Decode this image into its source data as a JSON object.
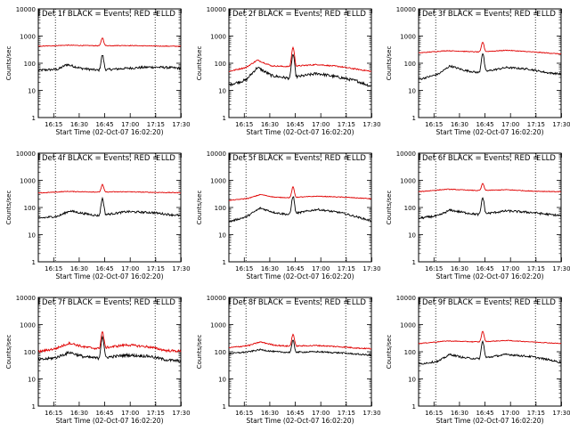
{
  "chart_data": [
    {
      "type": "line",
      "title": "Det 1f BLACK = Events, RED = LLD",
      "xlabel": "Start Time (02-Oct-07 16:02:20)",
      "ylabel": "Counts/sec",
      "ylog": true,
      "ylim": [
        1,
        10000
      ],
      "xtick_labels": [
        "16:15",
        "16:30",
        "16:45",
        "17:00",
        "17:15",
        "17:30"
      ],
      "ytick_labels": [
        "1",
        "10",
        "100",
        "1000",
        "10000"
      ],
      "marker_label": "E",
      "series": [
        {
          "color": "#000000",
          "base": [
            [
              0,
              55
            ],
            [
              0.14,
              60
            ],
            [
              0.2,
              90
            ],
            [
              0.3,
              65
            ],
            [
              0.42,
              55
            ],
            [
              0.62,
              65
            ],
            [
              0.78,
              72
            ],
            [
              0.9,
              70
            ],
            [
              1,
              65
            ]
          ],
          "peak": 140,
          "noise": 0.1
        },
        {
          "color": "#e00000",
          "base": [
            [
              0,
              420
            ],
            [
              0.2,
              460
            ],
            [
              0.42,
              440
            ],
            [
              0.62,
              450
            ],
            [
              0.8,
              430
            ],
            [
              1,
              420
            ]
          ],
          "peak": 420,
          "noise": 0.03
        }
      ]
    },
    {
      "type": "line",
      "title": "Det 2f BLACK = Events, RED = LLD",
      "xlabel": "Start Time (02-Oct-07 16:02:20)",
      "ylabel": "Counts/sec",
      "ylog": true,
      "ylim": [
        1,
        10000
      ],
      "xtick_labels": [
        "16:15",
        "16:30",
        "16:45",
        "17:00",
        "17:15",
        "17:30"
      ],
      "ytick_labels": [
        "1",
        "10",
        "100",
        "1000",
        "10000"
      ],
      "marker_label": "E",
      "series": [
        {
          "color": "#000000",
          "base": [
            [
              0,
              16
            ],
            [
              0.12,
              24
            ],
            [
              0.2,
              70
            ],
            [
              0.3,
              35
            ],
            [
              0.42,
              28
            ],
            [
              0.62,
              42
            ],
            [
              0.78,
              30
            ],
            [
              0.9,
              22
            ],
            [
              1,
              14
            ]
          ],
          "peak": 180,
          "noise": 0.12
        },
        {
          "color": "#e00000",
          "base": [
            [
              0,
              50
            ],
            [
              0.12,
              70
            ],
            [
              0.2,
              130
            ],
            [
              0.3,
              80
            ],
            [
              0.42,
              75
            ],
            [
              0.62,
              90
            ],
            [
              0.78,
              75
            ],
            [
              0.9,
              60
            ],
            [
              1,
              50
            ]
          ],
          "peak": 300,
          "noise": 0.05
        }
      ]
    },
    {
      "type": "line",
      "title": "Det 3f BLACK = Events, RED = LLD",
      "xlabel": "Start Time (02-Oct-07 16:02:20)",
      "ylabel": "Counts/sec",
      "ylog": true,
      "ylim": [
        1,
        10000
      ],
      "xtick_labels": [
        "16:15",
        "16:30",
        "16:45",
        "17:00",
        "17:15",
        "17:30"
      ],
      "ytick_labels": [
        "1",
        "10",
        "100",
        "1000",
        "10000"
      ],
      "marker_label": "E",
      "series": [
        {
          "color": "#000000",
          "base": [
            [
              0,
              25
            ],
            [
              0.14,
              40
            ],
            [
              0.22,
              80
            ],
            [
              0.32,
              55
            ],
            [
              0.42,
              45
            ],
            [
              0.62,
              70
            ],
            [
              0.78,
              60
            ],
            [
              0.9,
              45
            ],
            [
              1,
              40
            ]
          ],
          "peak": 180,
          "noise": 0.08
        },
        {
          "color": "#e00000",
          "base": [
            [
              0,
              240
            ],
            [
              0.2,
              290
            ],
            [
              0.42,
              260
            ],
            [
              0.62,
              300
            ],
            [
              0.8,
              260
            ],
            [
              1,
              220
            ]
          ],
          "peak": 330,
          "noise": 0.03
        }
      ]
    },
    {
      "type": "line",
      "title": "Det 4f BLACK = Events, RED = LLD",
      "xlabel": "Start Time (02-Oct-07 16:02:20)",
      "ylabel": "Counts/sec",
      "ylog": true,
      "ylim": [
        1,
        10000
      ],
      "xtick_labels": [
        "16:15",
        "16:30",
        "16:45",
        "17:00",
        "17:15",
        "17:30"
      ],
      "ytick_labels": [
        "1",
        "10",
        "100",
        "1000",
        "10000"
      ],
      "marker_label": "E",
      "series": [
        {
          "color": "#000000",
          "base": [
            [
              0,
              40
            ],
            [
              0.14,
              48
            ],
            [
              0.22,
              75
            ],
            [
              0.32,
              60
            ],
            [
              0.42,
              50
            ],
            [
              0.62,
              70
            ],
            [
              0.8,
              65
            ],
            [
              0.92,
              55
            ],
            [
              1,
              50
            ]
          ],
          "peak": 160,
          "noise": 0.09
        },
        {
          "color": "#e00000",
          "base": [
            [
              0,
              340
            ],
            [
              0.2,
              390
            ],
            [
              0.42,
              370
            ],
            [
              0.62,
              380
            ],
            [
              0.8,
              360
            ],
            [
              1,
              350
            ]
          ],
          "peak": 320,
          "noise": 0.03
        }
      ]
    },
    {
      "type": "line",
      "title": "Det 5f BLACK = Events, RED = LLD",
      "xlabel": "Start Time (02-Oct-07 16:02:20)",
      "ylabel": "Counts/sec",
      "ylog": true,
      "ylim": [
        1,
        10000
      ],
      "xtick_labels": [
        "16:15",
        "16:30",
        "16:45",
        "17:00",
        "17:15",
        "17:30"
      ],
      "ytick_labels": [
        "1",
        "10",
        "100",
        "1000",
        "10000"
      ],
      "marker_label": "E",
      "series": [
        {
          "color": "#000000",
          "base": [
            [
              0,
              30
            ],
            [
              0.12,
              45
            ],
            [
              0.22,
              95
            ],
            [
              0.32,
              65
            ],
            [
              0.42,
              55
            ],
            [
              0.62,
              85
            ],
            [
              0.78,
              65
            ],
            [
              0.9,
              45
            ],
            [
              1,
              32
            ]
          ],
          "peak": 200,
          "noise": 0.08
        },
        {
          "color": "#e00000",
          "base": [
            [
              0,
              180
            ],
            [
              0.14,
              220
            ],
            [
              0.22,
              300
            ],
            [
              0.32,
              240
            ],
            [
              0.42,
              230
            ],
            [
              0.62,
              260
            ],
            [
              0.8,
              240
            ],
            [
              1,
              210
            ]
          ],
          "peak": 330,
          "noise": 0.03
        }
      ]
    },
    {
      "type": "line",
      "title": "Det 6f BLACK = Events, RED = LLD",
      "xlabel": "Start Time (02-Oct-07 16:02:20)",
      "ylabel": "Counts/sec",
      "ylog": true,
      "ylim": [
        1,
        10000
      ],
      "xtick_labels": [
        "16:15",
        "16:30",
        "16:45",
        "17:00",
        "17:15",
        "17:30"
      ],
      "ytick_labels": [
        "1",
        "10",
        "100",
        "1000",
        "10000"
      ],
      "marker_label": "E",
      "series": [
        {
          "color": "#000000",
          "base": [
            [
              0,
              40
            ],
            [
              0.14,
              50
            ],
            [
              0.22,
              80
            ],
            [
              0.32,
              65
            ],
            [
              0.42,
              55
            ],
            [
              0.62,
              75
            ],
            [
              0.8,
              65
            ],
            [
              0.92,
              55
            ],
            [
              1,
              50
            ]
          ],
          "peak": 170,
          "noise": 0.09
        },
        {
          "color": "#e00000",
          "base": [
            [
              0,
              380
            ],
            [
              0.2,
              470
            ],
            [
              0.42,
              420
            ],
            [
              0.62,
              450
            ],
            [
              0.8,
              400
            ],
            [
              1,
              380
            ]
          ],
          "peak": 340,
          "noise": 0.03
        }
      ]
    },
    {
      "type": "line",
      "title": "Det 7f BLACK = Events, RED = LLD",
      "xlabel": "Start Time (02-Oct-07 16:02:20)",
      "ylabel": "Counts/sec",
      "ylog": true,
      "ylim": [
        1,
        10000
      ],
      "xtick_labels": [
        "16:15",
        "16:30",
        "16:45",
        "17:00",
        "17:15",
        "17:30"
      ],
      "ytick_labels": [
        "1",
        "10",
        "100",
        "1000",
        "10000"
      ],
      "marker_label": "E",
      "series": [
        {
          "color": "#000000",
          "base": [
            [
              0,
              50
            ],
            [
              0.12,
              60
            ],
            [
              0.22,
              95
            ],
            [
              0.32,
              65
            ],
            [
              0.42,
              58
            ],
            [
              0.62,
              75
            ],
            [
              0.78,
              68
            ],
            [
              0.9,
              50
            ],
            [
              1,
              45
            ]
          ],
          "peak": 300,
          "noise": 0.12
        },
        {
          "color": "#e00000",
          "base": [
            [
              0,
              100
            ],
            [
              0.12,
              130
            ],
            [
              0.22,
              210
            ],
            [
              0.32,
              150
            ],
            [
              0.42,
              130
            ],
            [
              0.62,
              180
            ],
            [
              0.78,
              150
            ],
            [
              0.9,
              110
            ],
            [
              1,
              105
            ]
          ],
          "peak": 400,
          "noise": 0.1
        }
      ]
    },
    {
      "type": "line",
      "title": "Det 8f BLACK = Events, RED = LLD",
      "xlabel": "Start Time (02-Oct-07 16:02:20)",
      "ylabel": "Counts/sec",
      "ylog": true,
      "ylim": [
        1,
        10000
      ],
      "xtick_labels": [
        "16:15",
        "16:30",
        "16:45",
        "17:00",
        "17:15",
        "17:30"
      ],
      "ytick_labels": [
        "1",
        "10",
        "100",
        "1000",
        "10000"
      ],
      "marker_label": "E",
      "series": [
        {
          "color": "#000000",
          "base": [
            [
              0,
              85
            ],
            [
              0.14,
              100
            ],
            [
              0.22,
              120
            ],
            [
              0.32,
              100
            ],
            [
              0.42,
              95
            ],
            [
              0.62,
              100
            ],
            [
              0.8,
              90
            ],
            [
              0.92,
              80
            ],
            [
              1,
              75
            ]
          ],
          "peak": 160,
          "noise": 0.06
        },
        {
          "color": "#e00000",
          "base": [
            [
              0,
              140
            ],
            [
              0.14,
              170
            ],
            [
              0.22,
              230
            ],
            [
              0.32,
              175
            ],
            [
              0.42,
              160
            ],
            [
              0.62,
              170
            ],
            [
              0.8,
              150
            ],
            [
              0.92,
              135
            ],
            [
              1,
              130
            ]
          ],
          "peak": 280,
          "noise": 0.05
        }
      ]
    },
    {
      "type": "line",
      "title": "Det 9f BLACK = Events, RED = LLD",
      "xlabel": "Start Time (02-Oct-07 16:02:20)",
      "ylabel": "Counts/sec",
      "ylog": true,
      "ylim": [
        1,
        10000
      ],
      "xtick_labels": [
        "16:15",
        "16:30",
        "16:45",
        "17:00",
        "17:15",
        "17:30"
      ],
      "ytick_labels": [
        "1",
        "10",
        "100",
        "1000",
        "10000"
      ],
      "marker_label": "E",
      "series": [
        {
          "color": "#000000",
          "base": [
            [
              0,
              35
            ],
            [
              0.14,
              45
            ],
            [
              0.22,
              80
            ],
            [
              0.32,
              60
            ],
            [
              0.42,
              55
            ],
            [
              0.62,
              80
            ],
            [
              0.8,
              65
            ],
            [
              0.92,
              50
            ],
            [
              1,
              40
            ]
          ],
          "peak": 180,
          "noise": 0.08
        },
        {
          "color": "#e00000",
          "base": [
            [
              0,
              200
            ],
            [
              0.2,
              250
            ],
            [
              0.42,
              230
            ],
            [
              0.62,
              260
            ],
            [
              0.8,
              230
            ],
            [
              1,
              200
            ]
          ],
          "peak": 330,
          "noise": 0.03
        }
      ]
    }
  ]
}
